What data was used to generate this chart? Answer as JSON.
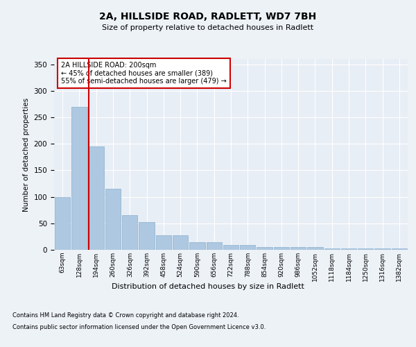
{
  "title1": "2A, HILLSIDE ROAD, RADLETT, WD7 7BH",
  "title2": "Size of property relative to detached houses in Radlett",
  "xlabel": "Distribution of detached houses by size in Radlett",
  "ylabel": "Number of detached properties",
  "categories": [
    "63sqm",
    "128sqm",
    "194sqm",
    "260sqm",
    "326sqm",
    "392sqm",
    "458sqm",
    "524sqm",
    "590sqm",
    "656sqm",
    "722sqm",
    "788sqm",
    "854sqm",
    "920sqm",
    "986sqm",
    "1052sqm",
    "1118sqm",
    "1184sqm",
    "1250sqm",
    "1316sqm",
    "1382sqm"
  ],
  "values": [
    100,
    270,
    195,
    115,
    65,
    53,
    27,
    27,
    15,
    15,
    9,
    9,
    5,
    5,
    5,
    5,
    2,
    2,
    2,
    2,
    2
  ],
  "bar_color": "#adc8e0",
  "bar_edgecolor": "#8ab0d0",
  "vline_color": "#cc0000",
  "vline_index": 1.55,
  "annotation_text": "2A HILLSIDE ROAD: 200sqm\n← 45% of detached houses are smaller (389)\n55% of semi-detached houses are larger (479) →",
  "annotation_box_edgecolor": "#cc0000",
  "ylim": [
    0,
    360
  ],
  "yticks": [
    0,
    50,
    100,
    150,
    200,
    250,
    300,
    350
  ],
  "footer_line1": "Contains HM Land Registry data © Crown copyright and database right 2024.",
  "footer_line2": "Contains public sector information licensed under the Open Government Licence v3.0.",
  "bg_color": "#edf2f7",
  "plot_bg_color": "#e8eef5"
}
